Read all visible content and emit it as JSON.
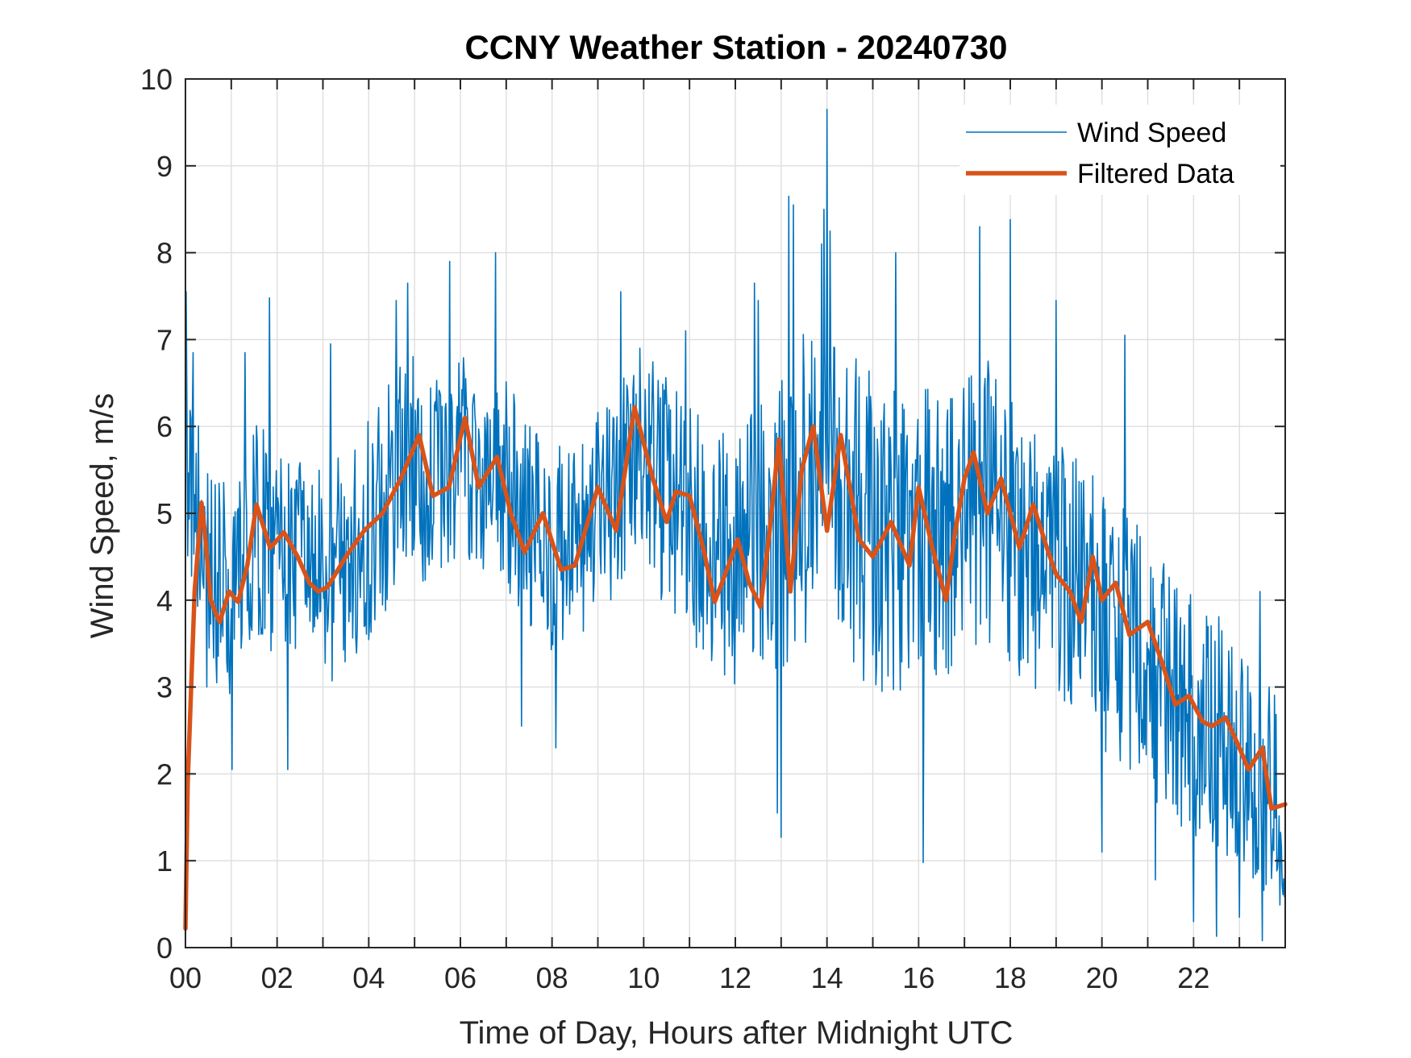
{
  "chart_data": {
    "type": "line",
    "title": "CCNY Weather Station - 20240730",
    "xlabel": "Time of Day, Hours after Midnight UTC",
    "ylabel": "Wind Speed, m/s",
    "xlim": [
      0,
      24
    ],
    "ylim": [
      0,
      10
    ],
    "grid": true,
    "legend_position": "top-right",
    "x_ticks": [
      0,
      2,
      4,
      6,
      8,
      10,
      12,
      14,
      16,
      18,
      20,
      22
    ],
    "x_tick_labels": [
      "00",
      "02",
      "04",
      "06",
      "08",
      "10",
      "12",
      "14",
      "16",
      "18",
      "20",
      "22"
    ],
    "y_ticks": [
      0,
      1,
      2,
      3,
      4,
      5,
      6,
      7,
      8,
      9,
      10
    ],
    "y_tick_labels": [
      "0",
      "1",
      "2",
      "3",
      "4",
      "5",
      "6",
      "7",
      "8",
      "9",
      "10"
    ],
    "series": [
      {
        "name": "Wind Speed",
        "color": "#0072bd",
        "style": "thin",
        "sampling": {
          "start_hour": 0,
          "step_hour": 0.0166667,
          "count": 1440
        },
        "baseline": [
          [
            0.0,
            5.8
          ],
          [
            0.5,
            4.2
          ],
          [
            1.0,
            4.1
          ],
          [
            1.5,
            4.8
          ],
          [
            2.0,
            4.6
          ],
          [
            2.5,
            4.4
          ],
          [
            3.0,
            4.2
          ],
          [
            3.5,
            4.5
          ],
          [
            4.0,
            4.8
          ],
          [
            4.5,
            5.3
          ],
          [
            5.0,
            5.6
          ],
          [
            5.5,
            5.3
          ],
          [
            6.0,
            5.7
          ],
          [
            6.5,
            5.4
          ],
          [
            7.0,
            5.3
          ],
          [
            7.5,
            4.9
          ],
          [
            8.0,
            4.6
          ],
          [
            8.5,
            4.5
          ],
          [
            9.0,
            4.9
          ],
          [
            9.5,
            5.2
          ],
          [
            10.0,
            5.7
          ],
          [
            10.5,
            5.2
          ],
          [
            11.0,
            4.9
          ],
          [
            11.5,
            4.5
          ],
          [
            12.0,
            4.4
          ],
          [
            12.5,
            4.8
          ],
          [
            13.0,
            4.9
          ],
          [
            13.5,
            5.3
          ],
          [
            14.0,
            5.2
          ],
          [
            14.5,
            5.1
          ],
          [
            15.0,
            4.8
          ],
          [
            15.5,
            4.7
          ],
          [
            16.0,
            4.9
          ],
          [
            16.5,
            4.6
          ],
          [
            17.0,
            5.0
          ],
          [
            17.5,
            5.1
          ],
          [
            18.0,
            4.8
          ],
          [
            18.5,
            4.6
          ],
          [
            19.0,
            4.2
          ],
          [
            19.5,
            4.0
          ],
          [
            20.0,
            3.9
          ],
          [
            20.5,
            3.5
          ],
          [
            21.0,
            3.3
          ],
          [
            21.5,
            2.9
          ],
          [
            22.0,
            2.7
          ],
          [
            22.5,
            2.5
          ],
          [
            23.0,
            2.2
          ],
          [
            23.5,
            1.9
          ],
          [
            24.0,
            1.6
          ]
        ],
        "spread": [
          [
            0.0,
            1.2
          ],
          [
            4.0,
            1.3
          ],
          [
            8.0,
            1.2
          ],
          [
            12.0,
            1.5
          ],
          [
            14.0,
            1.9
          ],
          [
            17.0,
            1.7
          ],
          [
            20.0,
            1.6
          ],
          [
            22.0,
            1.4
          ],
          [
            24.0,
            1.2
          ]
        ],
        "peaks": [
          [
            0.02,
            7.55
          ],
          [
            0.17,
            6.85
          ],
          [
            1.3,
            6.85
          ],
          [
            1.83,
            7.48
          ],
          [
            3.17,
            6.95
          ],
          [
            4.6,
            7.45
          ],
          [
            4.85,
            7.65
          ],
          [
            5.77,
            7.9
          ],
          [
            6.77,
            8.0
          ],
          [
            9.5,
            7.55
          ],
          [
            10.92,
            7.1
          ],
          [
            12.42,
            7.65
          ],
          [
            12.5,
            7.45
          ],
          [
            13.17,
            8.65
          ],
          [
            13.27,
            8.55
          ],
          [
            13.88,
            8.1
          ],
          [
            13.93,
            8.5
          ],
          [
            14.0,
            9.65
          ],
          [
            14.07,
            8.25
          ],
          [
            15.5,
            8.0
          ],
          [
            17.33,
            8.3
          ],
          [
            18.0,
            8.38
          ],
          [
            19.0,
            7.45
          ],
          [
            20.5,
            7.05
          ],
          [
            23.45,
            4.1
          ]
        ],
        "troughs": [
          [
            0.47,
            3.0
          ],
          [
            1.02,
            2.05
          ],
          [
            2.23,
            2.05
          ],
          [
            7.33,
            2.55
          ],
          [
            8.08,
            2.3
          ],
          [
            12.92,
            1.55
          ],
          [
            13.0,
            1.27
          ],
          [
            16.1,
            0.98
          ],
          [
            20.0,
            1.1
          ],
          [
            21.17,
            0.78
          ],
          [
            22.0,
            0.3
          ],
          [
            22.5,
            0.13
          ],
          [
            23.0,
            0.35
          ],
          [
            23.5,
            0.08
          ],
          [
            24.0,
            0.58
          ]
        ]
      },
      {
        "name": "Filtered Data",
        "color": "#d95319",
        "style": "thick",
        "x": [
          0.0,
          0.05,
          0.2,
          0.35,
          0.42,
          0.55,
          0.7,
          0.75,
          0.95,
          1.15,
          1.35,
          1.55,
          1.85,
          2.15,
          2.45,
          2.7,
          2.9,
          3.1,
          3.5,
          3.9,
          4.3,
          4.7,
          5.1,
          5.4,
          5.75,
          6.1,
          6.4,
          6.8,
          7.1,
          7.4,
          7.8,
          8.2,
          8.5,
          9.0,
          9.4,
          9.8,
          10.2,
          10.5,
          10.7,
          11.0,
          11.3,
          11.55,
          11.85,
          12.05,
          12.3,
          12.55,
          12.75,
          12.95,
          13.2,
          13.45,
          13.7,
          14.0,
          14.3,
          14.7,
          15.0,
          15.4,
          15.8,
          16.0,
          16.3,
          16.6,
          16.8,
          17.0,
          17.2,
          17.5,
          17.8,
          18.2,
          18.5,
          18.8,
          19.0,
          19.3,
          19.55,
          19.8,
          20.0,
          20.3,
          20.6,
          21.0,
          21.3,
          21.6,
          21.9,
          22.2,
          22.4,
          22.7,
          23.0,
          23.2,
          23.5,
          23.7,
          24.0
        ],
        "y": [
          0.22,
          1.9,
          4.1,
          5.12,
          4.8,
          4.0,
          3.8,
          3.75,
          4.1,
          3.98,
          4.4,
          5.1,
          4.6,
          4.78,
          4.5,
          4.2,
          4.1,
          4.15,
          4.5,
          4.8,
          5.0,
          5.4,
          5.9,
          5.2,
          5.3,
          6.1,
          5.3,
          5.65,
          5.0,
          4.55,
          5.0,
          4.35,
          4.4,
          5.3,
          4.8,
          6.22,
          5.4,
          4.9,
          5.25,
          5.2,
          4.6,
          3.98,
          4.4,
          4.7,
          4.2,
          3.92,
          4.8,
          5.85,
          4.1,
          5.5,
          6.0,
          4.8,
          5.9,
          4.7,
          4.5,
          4.9,
          4.4,
          5.3,
          4.6,
          4.0,
          4.8,
          5.4,
          5.7,
          5.0,
          5.4,
          4.6,
          5.1,
          4.6,
          4.3,
          4.1,
          3.75,
          4.5,
          4.0,
          4.2,
          3.6,
          3.75,
          3.3,
          2.8,
          2.9,
          2.6,
          2.55,
          2.65,
          2.3,
          2.05,
          2.3,
          1.6,
          1.65
        ]
      }
    ]
  }
}
